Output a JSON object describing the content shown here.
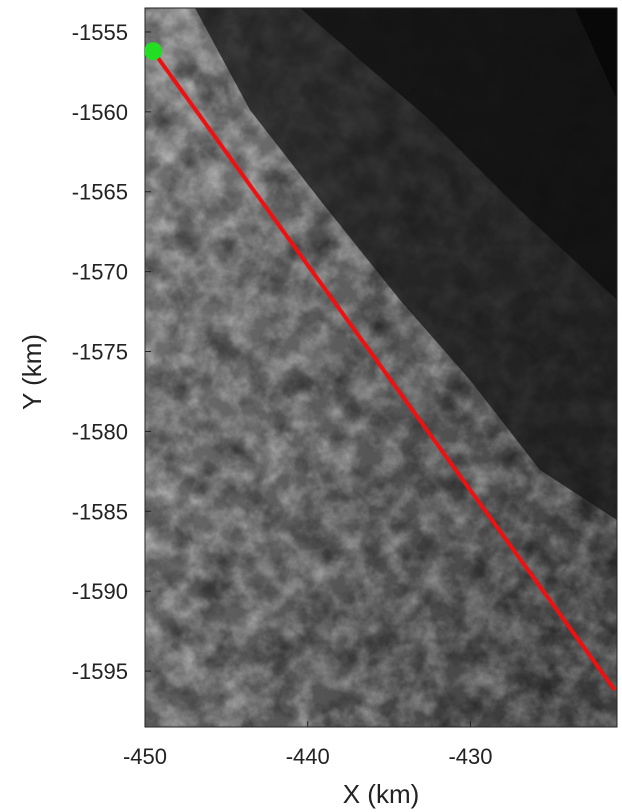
{
  "chart_data": {
    "type": "map",
    "xlabel": "X (km)",
    "ylabel": "Y (km)",
    "xlim": [
      -450,
      -421
    ],
    "ylim": [
      -1598.5,
      -1553.5
    ],
    "x_ticks": [
      {
        "value": -450,
        "label": "-450"
      },
      {
        "value": -440,
        "label": "-440"
      },
      {
        "value": -430,
        "label": "-430"
      }
    ],
    "y_ticks": [
      {
        "value": -1555,
        "label": "-1555"
      },
      {
        "value": -1560,
        "label": "-1560"
      },
      {
        "value": -1565,
        "label": "-1565"
      },
      {
        "value": -1570,
        "label": "-1570"
      },
      {
        "value": -1575,
        "label": "-1575"
      },
      {
        "value": -1580,
        "label": "-1580"
      },
      {
        "value": -1585,
        "label": "-1585"
      },
      {
        "value": -1590,
        "label": "-1590"
      },
      {
        "value": -1595,
        "label": "-1595"
      }
    ],
    "track": {
      "color": "#ee1111",
      "points": [
        [
          -449.5,
          -1556.2
        ],
        [
          -421.2,
          -1596.1
        ]
      ]
    },
    "start_marker": {
      "color": "#22dd22",
      "x": -449.5,
      "y": -1556.2,
      "icon": "circle-marker-icon"
    },
    "background": "grayscale-surface-image"
  }
}
